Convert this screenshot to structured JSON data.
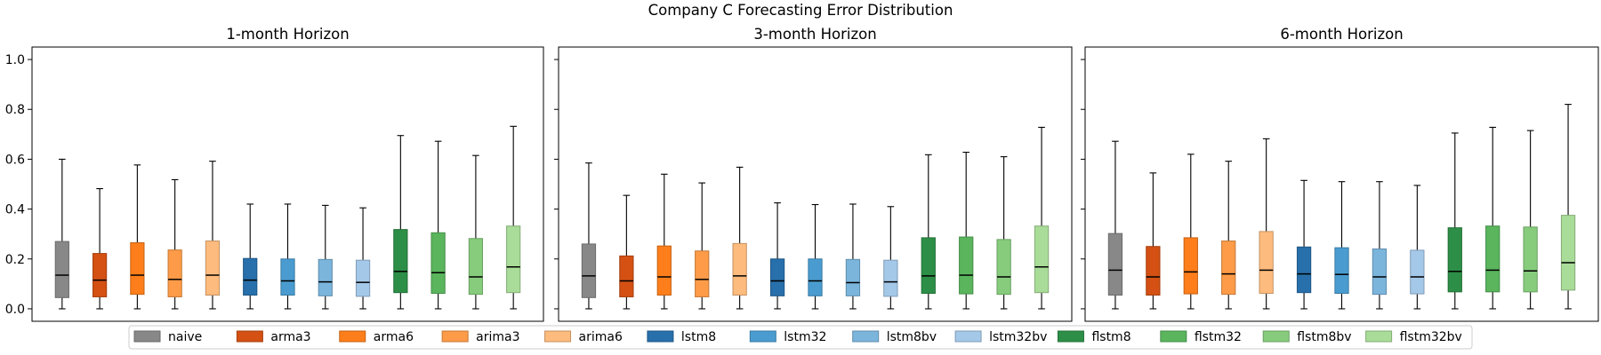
{
  "figure_title": "Company C Forecasting Error Distribution",
  "legend": {
    "items": [
      {
        "name": "naive",
        "color": "#888888"
      },
      {
        "name": "arma3",
        "color": "#d45113"
      },
      {
        "name": "arma6",
        "color": "#fd7e1a"
      },
      {
        "name": "arima3",
        "color": "#fd9b48"
      },
      {
        "name": "arima6",
        "color": "#fdbb7d"
      },
      {
        "name": "lstm8",
        "color": "#2870ab"
      },
      {
        "name": "lstm32",
        "color": "#4a9cd0"
      },
      {
        "name": "lstm8bv",
        "color": "#7bb5dc"
      },
      {
        "name": "lstm32bv",
        "color": "#a4c8e8"
      },
      {
        "name": "flstm8",
        "color": "#2d8f47"
      },
      {
        "name": "flstm32",
        "color": "#5ab55d"
      },
      {
        "name": "flstm8bv",
        "color": "#86cc7c"
      },
      {
        "name": "flstm32bv",
        "color": "#a9dc98"
      }
    ]
  },
  "chart_data": [
    {
      "type": "box",
      "title": "1-month Horizon",
      "ylim": [
        -0.05,
        1.05
      ],
      "yticks": [
        "0.0",
        "0.2",
        "0.4",
        "0.6",
        "0.8",
        "1.0"
      ],
      "series": [
        {
          "name": "naive",
          "min": 0.0,
          "q1": 0.045,
          "median": 0.135,
          "q3": 0.27,
          "max": 0.6
        },
        {
          "name": "arma3",
          "min": 0.0,
          "q1": 0.048,
          "median": 0.115,
          "q3": 0.222,
          "max": 0.482
        },
        {
          "name": "arma6",
          "min": 0.0,
          "q1": 0.058,
          "median": 0.135,
          "q3": 0.265,
          "max": 0.577
        },
        {
          "name": "arima3",
          "min": 0.0,
          "q1": 0.048,
          "median": 0.118,
          "q3": 0.236,
          "max": 0.518
        },
        {
          "name": "arima6",
          "min": 0.0,
          "q1": 0.055,
          "median": 0.135,
          "q3": 0.272,
          "max": 0.592
        },
        {
          "name": "lstm8",
          "min": 0.0,
          "q1": 0.055,
          "median": 0.115,
          "q3": 0.202,
          "max": 0.42
        },
        {
          "name": "lstm32",
          "min": 0.0,
          "q1": 0.055,
          "median": 0.112,
          "q3": 0.2,
          "max": 0.42
        },
        {
          "name": "lstm8bv",
          "min": 0.0,
          "q1": 0.052,
          "median": 0.108,
          "q3": 0.198,
          "max": 0.415
        },
        {
          "name": "lstm32bv",
          "min": 0.0,
          "q1": 0.05,
          "median": 0.106,
          "q3": 0.195,
          "max": 0.405
        },
        {
          "name": "flstm8",
          "min": 0.0,
          "q1": 0.065,
          "median": 0.15,
          "q3": 0.318,
          "max": 0.695
        },
        {
          "name": "flstm32",
          "min": 0.0,
          "q1": 0.062,
          "median": 0.145,
          "q3": 0.305,
          "max": 0.672
        },
        {
          "name": "flstm8bv",
          "min": 0.0,
          "q1": 0.058,
          "median": 0.128,
          "q3": 0.282,
          "max": 0.615
        },
        {
          "name": "flstm32bv",
          "min": 0.0,
          "q1": 0.065,
          "median": 0.168,
          "q3": 0.332,
          "max": 0.732
        }
      ]
    },
    {
      "type": "box",
      "title": "3-month Horizon",
      "ylim": [
        -0.05,
        1.05
      ],
      "series": [
        {
          "name": "naive",
          "min": 0.0,
          "q1": 0.045,
          "median": 0.132,
          "q3": 0.26,
          "max": 0.585
        },
        {
          "name": "arma3",
          "min": 0.0,
          "q1": 0.048,
          "median": 0.112,
          "q3": 0.212,
          "max": 0.455
        },
        {
          "name": "arma6",
          "min": 0.0,
          "q1": 0.055,
          "median": 0.128,
          "q3": 0.252,
          "max": 0.54
        },
        {
          "name": "arima3",
          "min": 0.0,
          "q1": 0.048,
          "median": 0.118,
          "q3": 0.232,
          "max": 0.505
        },
        {
          "name": "arima6",
          "min": 0.0,
          "q1": 0.055,
          "median": 0.132,
          "q3": 0.262,
          "max": 0.568
        },
        {
          "name": "lstm8",
          "min": 0.0,
          "q1": 0.052,
          "median": 0.112,
          "q3": 0.2,
          "max": 0.425
        },
        {
          "name": "lstm32",
          "min": 0.0,
          "q1": 0.052,
          "median": 0.112,
          "q3": 0.2,
          "max": 0.418
        },
        {
          "name": "lstm8bv",
          "min": 0.0,
          "q1": 0.052,
          "median": 0.105,
          "q3": 0.198,
          "max": 0.42
        },
        {
          "name": "lstm32bv",
          "min": 0.0,
          "q1": 0.05,
          "median": 0.108,
          "q3": 0.195,
          "max": 0.41
        },
        {
          "name": "flstm8",
          "min": 0.0,
          "q1": 0.062,
          "median": 0.132,
          "q3": 0.285,
          "max": 0.618
        },
        {
          "name": "flstm32",
          "min": 0.0,
          "q1": 0.06,
          "median": 0.135,
          "q3": 0.288,
          "max": 0.628
        },
        {
          "name": "flstm8bv",
          "min": 0.0,
          "q1": 0.058,
          "median": 0.128,
          "q3": 0.278,
          "max": 0.61
        },
        {
          "name": "flstm32bv",
          "min": 0.0,
          "q1": 0.065,
          "median": 0.168,
          "q3": 0.332,
          "max": 0.728
        }
      ]
    },
    {
      "type": "box",
      "title": "6-month Horizon",
      "ylim": [
        -0.05,
        1.05
      ],
      "series": [
        {
          "name": "naive",
          "min": 0.0,
          "q1": 0.055,
          "median": 0.155,
          "q3": 0.302,
          "max": 0.672
        },
        {
          "name": "arma3",
          "min": 0.0,
          "q1": 0.055,
          "median": 0.128,
          "q3": 0.25,
          "max": 0.545
        },
        {
          "name": "arma6",
          "min": 0.0,
          "q1": 0.06,
          "median": 0.148,
          "q3": 0.285,
          "max": 0.62
        },
        {
          "name": "arima3",
          "min": 0.0,
          "q1": 0.058,
          "median": 0.14,
          "q3": 0.272,
          "max": 0.592
        },
        {
          "name": "arima6",
          "min": 0.0,
          "q1": 0.062,
          "median": 0.155,
          "q3": 0.31,
          "max": 0.682
        },
        {
          "name": "lstm8",
          "min": 0.0,
          "q1": 0.065,
          "median": 0.14,
          "q3": 0.248,
          "max": 0.515
        },
        {
          "name": "lstm32",
          "min": 0.0,
          "q1": 0.062,
          "median": 0.138,
          "q3": 0.245,
          "max": 0.51
        },
        {
          "name": "lstm8bv",
          "min": 0.0,
          "q1": 0.058,
          "median": 0.128,
          "q3": 0.24,
          "max": 0.51
        },
        {
          "name": "lstm32bv",
          "min": 0.0,
          "q1": 0.06,
          "median": 0.128,
          "q3": 0.235,
          "max": 0.495
        },
        {
          "name": "flstm8",
          "min": 0.0,
          "q1": 0.068,
          "median": 0.15,
          "q3": 0.325,
          "max": 0.705
        },
        {
          "name": "flstm32",
          "min": 0.0,
          "q1": 0.068,
          "median": 0.155,
          "q3": 0.332,
          "max": 0.728
        },
        {
          "name": "flstm8bv",
          "min": 0.0,
          "q1": 0.068,
          "median": 0.152,
          "q3": 0.328,
          "max": 0.715
        },
        {
          "name": "flstm32bv",
          "min": 0.0,
          "q1": 0.075,
          "median": 0.185,
          "q3": 0.375,
          "max": 0.82
        }
      ]
    }
  ]
}
